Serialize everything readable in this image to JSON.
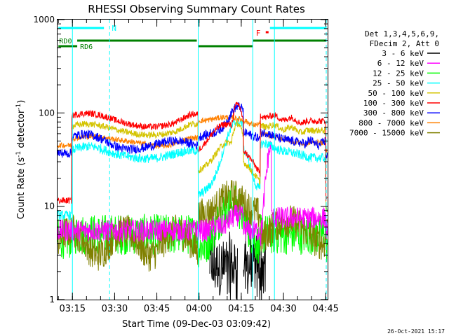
{
  "chart_data": {
    "type": "line",
    "title": "RHESSI Observing Summary Count Rates",
    "xlabel": "Start Time (09-Dec-03 03:09:42)",
    "ylabel_main": "Count Rate (s",
    "ylabel_sup1": "-1",
    "ylabel_mid": " detector",
    "ylabel_sup2": "-1",
    "ylabel_end": ")",
    "yscale": "log",
    "ylim": [
      1,
      1000
    ],
    "xlim_minutes": [
      0,
      96
    ],
    "y_ticks": [
      {
        "value": 1,
        "label": "1"
      },
      {
        "value": 10,
        "label": "10"
      },
      {
        "value": 100,
        "label": "100"
      },
      {
        "value": 1000,
        "label": "1000"
      }
    ],
    "x_ticks": [
      {
        "minute": 5.3,
        "label": "03:15"
      },
      {
        "minute": 20.3,
        "label": "03:30"
      },
      {
        "minute": 35.3,
        "label": "03:45"
      },
      {
        "minute": 50.3,
        "label": "04:00"
      },
      {
        "minute": 65.3,
        "label": "04:15"
      },
      {
        "minute": 80.3,
        "label": "04:30"
      },
      {
        "minute": 95.3,
        "label": "04:45"
      }
    ],
    "legend_header": [
      "Det 1,3,4,5,6,9,",
      "FDecim 2, Att 0"
    ],
    "series": [
      {
        "name": "3 - 6 keV",
        "color": "#000000"
      },
      {
        "name": "6 - 12 keV",
        "color": "#ff00ff"
      },
      {
        "name": "12 - 25 keV",
        "color": "#00ff00"
      },
      {
        "name": "25 - 50 keV",
        "color": "#00ffff"
      },
      {
        "name": "50 - 100 keV",
        "color": "#d4c400"
      },
      {
        "name": "100 - 300 keV",
        "color": "#ff0000"
      },
      {
        "name": "300 - 800 keV",
        "color": "#0000ff"
      },
      {
        "name": "800 - 7000 keV",
        "color": "#ff8000"
      },
      {
        "name": "7000 - 15000 keV",
        "color": "#808000"
      }
    ],
    "flags": {
      "N_label": "N",
      "F_label": "F",
      "RD0_label": "RD0",
      "RD6_label": "RD6"
    },
    "timestamp": "26-Oct-2021 15:17"
  }
}
